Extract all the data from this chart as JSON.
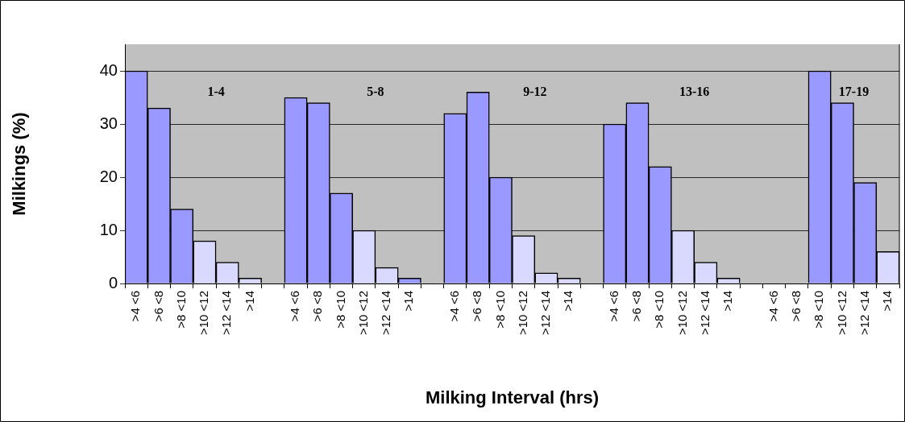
{
  "chart_data": {
    "type": "bar",
    "xlabel": "Milking Interval (hrs)",
    "ylabel": "Milkings (%)",
    "categories": [
      ">4 <6",
      ">6 <8",
      ">8 <10",
      ">10 <12",
      ">12 <14",
      ">14",
      null,
      ">4 <6",
      ">6 <8",
      ">8 <10",
      ">10 <12",
      ">12 <14",
      ">14",
      null,
      ">4 <6",
      ">6 <8",
      ">8 <10",
      ">10 <12",
      ">12 <14",
      ">14",
      null,
      ">4 <6",
      ">6 <8",
      ">8 <10",
      ">10 <12",
      ">12 <14",
      ">14",
      null,
      ">4 <6",
      ">6 <8",
      ">8 <10",
      ">10 <12",
      ">12 <14",
      ">14"
    ],
    "values": [
      40,
      33,
      14,
      8,
      4,
      1,
      null,
      35,
      34,
      17,
      10,
      3,
      1,
      null,
      32,
      36,
      20,
      9,
      2,
      1,
      null,
      30,
      34,
      22,
      10,
      4,
      1,
      null,
      null,
      null,
      40,
      34,
      19,
      6
    ],
    "colors": [
      "#9999ff",
      "#9999ff",
      "#9999ff",
      "#d9d9ff",
      "#d9d9ff",
      "#d9d9ff",
      "#ffffff",
      "#9999ff",
      "#9999ff",
      "#9999ff",
      "#d9d9ff",
      "#d9d9ff",
      "#9999ff",
      "#ffffff",
      "#9999ff",
      "#9999ff",
      "#9999ff",
      "#d9d9ff",
      "#d9d9ff",
      "#d9d9ff",
      "#ffffff",
      "#9999ff",
      "#9999ff",
      "#9999ff",
      "#d9d9ff",
      "#d9d9ff",
      "#d9d9ff",
      "#ffffff",
      "#9999ff",
      "#9999ff",
      "#9999ff",
      "#9999ff",
      "#9999ff",
      "#d9d9ff"
    ],
    "ylim": [
      0,
      45
    ],
    "yticks": [
      0,
      10,
      20,
      30,
      40
    ],
    "grid": "y",
    "legend": false,
    "annotations": [
      "1-4",
      "5-8",
      "9-12",
      "13-16",
      "17-19"
    ]
  }
}
